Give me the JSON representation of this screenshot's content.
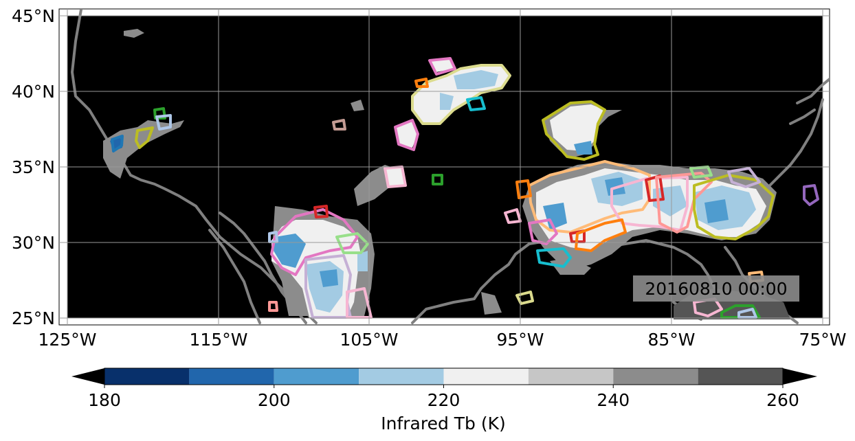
{
  "map": {
    "type": "infrared-brightness-temperature-map",
    "timestamp": "20160810 00:00",
    "lon_range": [
      -125,
      -75
    ],
    "lat_range": [
      25,
      45
    ],
    "background_color": "#000000",
    "coastline_color": "#808080",
    "gridlines": true,
    "x_ticks": [
      "125°W",
      "115°W",
      "105°W",
      "95°W",
      "85°W",
      "75°W"
    ],
    "y_ticks": [
      "25°N",
      "30°N",
      "35°N",
      "40°N",
      "45°N"
    ]
  },
  "colorbar": {
    "label": "Infrared Tb (K)",
    "extend": "both",
    "levels": [
      180,
      190,
      200,
      210,
      220,
      230,
      240,
      250,
      260
    ],
    "tick_labels": [
      "180",
      "200",
      "220",
      "240",
      "260"
    ],
    "colors": [
      "#08306b",
      "#2166ac",
      "#4f9ccf",
      "#a3cbe3",
      "#f0f0f0",
      "#c6c6c6",
      "#8c8c8c",
      "#555555"
    ],
    "under_color": "#000000",
    "over_color": "#000000"
  },
  "features": {
    "note_colors": {
      "pink": "#e377c2",
      "olive": "#bcbd22",
      "orange": "#ff7f0e",
      "light_orange": "#ffbb78",
      "red": "#d62728",
      "cyan": "#17becf",
      "green": "#2ca02c",
      "light_green": "#98df8a",
      "blue": "#1f77b4",
      "light_blue": "#aec7e8",
      "purple": "#9467bd",
      "light_purple": "#c5b0d5",
      "salmon": "#ff9896",
      "light_pink": "#f7b6d2",
      "khaki": "#dbdb8d",
      "tan": "#c49c94"
    }
  }
}
